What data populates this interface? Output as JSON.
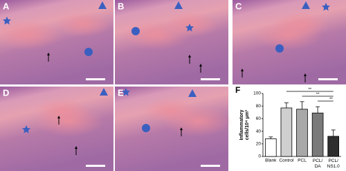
{
  "panels": [
    {
      "label": "A"
    },
    {
      "label": "B"
    },
    {
      "label": "C"
    },
    {
      "label": "D"
    },
    {
      "label": "E"
    }
  ],
  "chart_data": {
    "type": "bar",
    "panel_label": "F",
    "y_label_lines": [
      "Inflammatory",
      "cells/10⁴ μm²"
    ],
    "categories": [
      "Blank",
      "Control",
      "PCL",
      "PCL/DA",
      "PCL/NS1.0"
    ],
    "values": [
      28,
      77,
      75,
      69,
      32
    ],
    "errors": [
      3,
      8,
      12,
      10,
      10
    ],
    "colors": [
      "#ffffff",
      "#cfcfcf",
      "#a8a8a8",
      "#7a7a7a",
      "#2e2e2e"
    ],
    "ylim": [
      0,
      100
    ],
    "yticks": [
      0,
      20,
      40,
      60,
      80,
      100
    ],
    "significance": [
      {
        "pair": [
          "Control",
          "PCL/NS1.0"
        ],
        "label": "**"
      },
      {
        "pair": [
          "PCL",
          "PCL/NS1.0"
        ],
        "label": "**"
      },
      {
        "pair": [
          "PCL/DA",
          "PCL/NS1.0"
        ],
        "label": "**"
      }
    ]
  }
}
